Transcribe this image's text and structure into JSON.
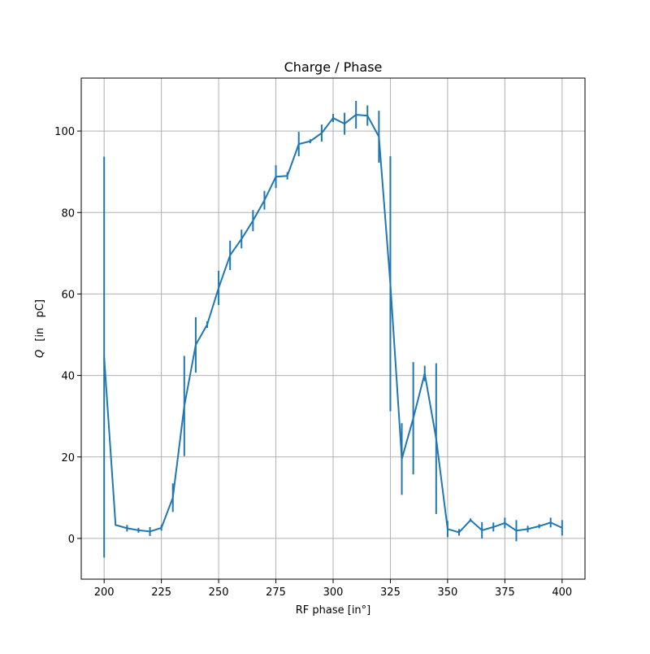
{
  "chart_data": {
    "type": "line",
    "title": "Charge / Phase",
    "xlabel": "RF phase [in°]",
    "ylabel_symbol": "Q",
    "ylabel_unit": "[in   pC]",
    "xlim": [
      190,
      410
    ],
    "ylim": [
      -10,
      113
    ],
    "xticks": [
      200,
      225,
      250,
      275,
      300,
      325,
      350,
      375,
      400
    ],
    "yticks": [
      0,
      20,
      40,
      60,
      80,
      100
    ],
    "grid": true,
    "color": "#1f77b4",
    "series": [
      {
        "x": [
          200,
          205,
          210,
          215,
          220,
          225,
          230,
          235,
          240,
          245,
          250,
          255,
          260,
          265,
          270,
          275,
          280,
          285,
          290,
          295,
          300,
          305,
          310,
          315,
          320,
          325,
          330,
          335,
          340,
          345,
          350,
          355,
          360,
          365,
          370,
          375,
          380,
          385,
          390,
          395,
          400
        ],
        "y": [
          44.5,
          3.3,
          2.5,
          2.0,
          1.7,
          2.6,
          10.0,
          32.5,
          47.5,
          52.5,
          61.5,
          69.5,
          73.5,
          78.0,
          83.0,
          88.8,
          89.0,
          96.8,
          97.5,
          99.5,
          103.2,
          101.8,
          104.0,
          103.8,
          98.6,
          62.5,
          19.5,
          29.5,
          40.5,
          24.5,
          2.3,
          1.5,
          4.5,
          2.0,
          2.8,
          3.8,
          1.9,
          2.3,
          3.0,
          3.9,
          2.6
        ],
        "yerr": [
          49.2,
          0.2,
          0.8,
          0.6,
          1.1,
          0.7,
          3.5,
          12.3,
          6.8,
          0.8,
          4.2,
          3.6,
          2.3,
          2.6,
          2.3,
          2.8,
          0.9,
          3.0,
          0.5,
          2.1,
          1.0,
          2.7,
          3.4,
          2.5,
          6.4,
          31.3,
          8.8,
          13.8,
          1.9,
          18.5,
          2.0,
          0.8,
          0.4,
          2.0,
          1.1,
          1.3,
          2.6,
          0.8,
          0.5,
          1.2,
          1.9
        ]
      }
    ]
  }
}
